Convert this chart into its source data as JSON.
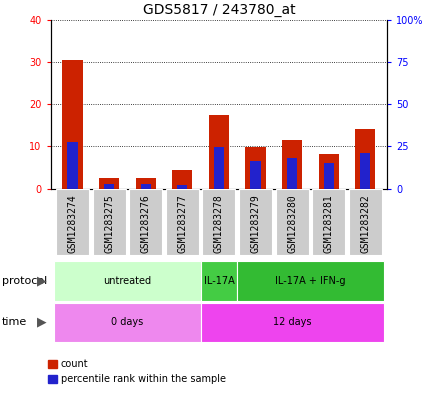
{
  "title": "GDS5817 / 243780_at",
  "samples": [
    "GSM1283274",
    "GSM1283275",
    "GSM1283276",
    "GSM1283277",
    "GSM1283278",
    "GSM1283279",
    "GSM1283280",
    "GSM1283281",
    "GSM1283282"
  ],
  "count_values": [
    30.5,
    2.5,
    2.5,
    4.5,
    17.5,
    9.8,
    11.5,
    8.3,
    14.0
  ],
  "percentile_values": [
    27.5,
    3.0,
    3.0,
    2.0,
    24.5,
    16.25,
    18.0,
    15.0,
    21.25
  ],
  "left_ylim": [
    0,
    40
  ],
  "right_ylim": [
    0,
    100
  ],
  "left_yticks": [
    0,
    10,
    20,
    30,
    40
  ],
  "right_yticks": [
    0,
    25,
    50,
    75,
    100
  ],
  "right_yticklabels": [
    "0",
    "25",
    "50",
    "75",
    "100%"
  ],
  "left_yticklabels": [
    "0",
    "10",
    "20",
    "30",
    "40"
  ],
  "bar_color_red": "#cc2200",
  "bar_color_blue": "#2222cc",
  "protocol_groups": [
    {
      "label": "untreated",
      "start": 0,
      "end": 3,
      "color": "#ccffcc"
    },
    {
      "label": "IL-17A",
      "start": 4,
      "end": 4,
      "color": "#44cc44"
    },
    {
      "label": "IL-17A + IFN-g",
      "start": 5,
      "end": 8,
      "color": "#33bb33"
    }
  ],
  "time_groups": [
    {
      "label": "0 days",
      "start": 0,
      "end": 3,
      "color": "#ee88ee"
    },
    {
      "label": "12 days",
      "start": 4,
      "end": 8,
      "color": "#ee44ee"
    }
  ],
  "protocol_label": "protocol",
  "time_label": "time",
  "legend_count_label": "count",
  "legend_percentile_label": "percentile rank within the sample",
  "grid_color": "#000000",
  "bg_color": "#ffffff",
  "sample_box_color": "#cccccc",
  "bar_width": 0.55,
  "blue_bar_width": 0.28,
  "title_fontsize": 10,
  "tick_fontsize": 7,
  "label_fontsize": 8
}
